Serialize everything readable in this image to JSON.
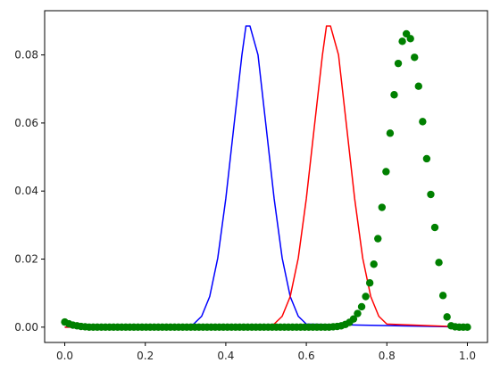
{
  "chart_data": {
    "type": "line",
    "title": "",
    "xlabel": "",
    "ylabel": "",
    "xlim": [
      -0.05,
      1.05
    ],
    "ylim": [
      -0.0045,
      0.093
    ],
    "grid": false,
    "x_ticks": [
      0.0,
      0.2,
      0.4,
      0.6,
      0.8,
      1.0
    ],
    "x_tick_labels": [
      "0.0",
      "0.2",
      "0.4",
      "0.6",
      "0.8",
      "1.0"
    ],
    "y_ticks": [
      0.0,
      0.02,
      0.04,
      0.06,
      0.08
    ],
    "y_tick_labels": [
      "0.00",
      "0.02",
      "0.04",
      "0.06",
      "0.08"
    ],
    "series": [
      {
        "style": "line",
        "color": "#0000ff",
        "x": [
          0.0,
          0.3,
          0.32,
          0.34,
          0.36,
          0.38,
          0.4,
          0.42,
          0.44,
          0.45,
          0.46,
          0.48,
          0.5,
          0.52,
          0.54,
          0.56,
          0.58,
          0.6,
          1.0
        ],
        "y": [
          0.0,
          0.0002,
          0.0009,
          0.0032,
          0.009,
          0.0203,
          0.0378,
          0.059,
          0.08,
          0.0885,
          0.0885,
          0.08,
          0.059,
          0.0378,
          0.0203,
          0.009,
          0.0032,
          0.0009,
          0.0
        ]
      },
      {
        "style": "line",
        "color": "#ff0000",
        "x": [
          0.0,
          0.5,
          0.52,
          0.54,
          0.56,
          0.58,
          0.6,
          0.62,
          0.64,
          0.65,
          0.66,
          0.68,
          0.7,
          0.72,
          0.74,
          0.76,
          0.78,
          0.8,
          1.0
        ],
        "y": [
          0.0,
          0.0002,
          0.0009,
          0.0032,
          0.009,
          0.0203,
          0.0378,
          0.059,
          0.08,
          0.0885,
          0.0885,
          0.08,
          0.059,
          0.0378,
          0.0203,
          0.009,
          0.0032,
          0.0009,
          0.0
        ]
      },
      {
        "style": "scatter",
        "color": "#008000",
        "x": [
          0.0,
          0.0101,
          0.0202,
          0.0303,
          0.0404,
          0.0505,
          0.0606,
          0.0707,
          0.0808,
          0.0909,
          0.101,
          0.1111,
          0.1212,
          0.1313,
          0.1414,
          0.1515,
          0.1616,
          0.1717,
          0.1818,
          0.1919,
          0.202,
          0.2121,
          0.2222,
          0.2323,
          0.2424,
          0.2525,
          0.2626,
          0.2727,
          0.2828,
          0.2929,
          0.303,
          0.3131,
          0.3232,
          0.3333,
          0.3434,
          0.3535,
          0.3636,
          0.3737,
          0.3838,
          0.3939,
          0.404,
          0.4141,
          0.4242,
          0.4343,
          0.4444,
          0.4545,
          0.4646,
          0.4747,
          0.4848,
          0.4949,
          0.5051,
          0.5152,
          0.5253,
          0.5354,
          0.5455,
          0.5556,
          0.5657,
          0.5758,
          0.5859,
          0.596,
          0.6061,
          0.6162,
          0.6263,
          0.6364,
          0.6465,
          0.6566,
          0.6667,
          0.6768,
          0.6869,
          0.697,
          0.7071,
          0.7172,
          0.7273,
          0.7374,
          0.7475,
          0.7576,
          0.7677,
          0.7778,
          0.7879,
          0.798,
          0.8081,
          0.8182,
          0.8283,
          0.8384,
          0.8485,
          0.8586,
          0.8687,
          0.8788,
          0.8889,
          0.899,
          0.9091,
          0.9192,
          0.9293,
          0.9394,
          0.9495,
          0.9596,
          0.9697,
          0.9798,
          0.9899,
          1.0
        ],
        "y": [
          0.0015,
          0.001,
          0.0006,
          0.0004,
          0.0002,
          0.0001,
          0.0,
          0.0,
          0.0,
          0.0,
          0.0,
          0.0,
          0.0,
          0.0,
          0.0,
          0.0,
          0.0,
          0.0,
          0.0,
          0.0,
          0.0,
          0.0,
          0.0,
          0.0,
          0.0,
          0.0,
          0.0,
          0.0,
          0.0,
          0.0,
          0.0,
          0.0,
          0.0,
          0.0,
          0.0,
          0.0,
          0.0,
          0.0,
          0.0,
          0.0,
          0.0,
          0.0,
          0.0,
          0.0,
          0.0,
          0.0,
          0.0,
          0.0,
          0.0,
          0.0,
          0.0,
          0.0,
          0.0,
          0.0,
          0.0,
          0.0,
          0.0,
          0.0,
          0.0,
          0.0,
          0.0,
          0.0,
          0.0,
          0.0,
          0.0,
          0.0,
          0.0001,
          0.0002,
          0.0004,
          0.0008,
          0.0014,
          0.0024,
          0.004,
          0.006,
          0.009,
          0.013,
          0.0185,
          0.026,
          0.0352,
          0.0457,
          0.057,
          0.0683,
          0.0775,
          0.084,
          0.0862,
          0.0848,
          0.0793,
          0.0708,
          0.0604,
          0.0495,
          0.039,
          0.0293,
          0.019,
          0.0093,
          0.003,
          0.0004,
          0.0001,
          0.0,
          0.0,
          0.0
        ]
      }
    ]
  }
}
